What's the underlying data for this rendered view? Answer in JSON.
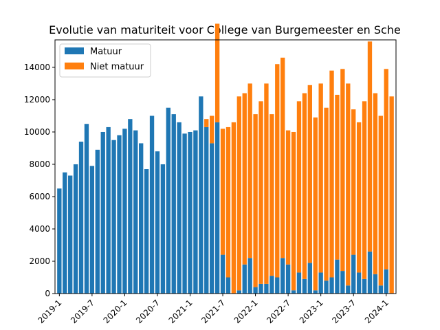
{
  "chart_data": {
    "type": "bar",
    "stacked": true,
    "title": "Evolutie van maturiteit voor College van Burgemeester en Sche",
    "xlabel": "",
    "ylabel": "",
    "ylim": [
      0,
      15700
    ],
    "yticks": [
      0,
      2000,
      4000,
      6000,
      8000,
      10000,
      12000,
      14000
    ],
    "xtick_labels": [
      "2019-1",
      "2019-7",
      "2020-1",
      "2020-7",
      "2021-1",
      "2021-7",
      "2022-1",
      "2022-7",
      "2023-1",
      "2023-7",
      "2024-1"
    ],
    "legend_position": "upper-left",
    "grid": false,
    "months": [
      "2019-1",
      "2019-2",
      "2019-3",
      "2019-4",
      "2019-5",
      "2019-6",
      "2019-7",
      "2019-8",
      "2019-9",
      "2019-10",
      "2019-11",
      "2019-12",
      "2020-1",
      "2020-2",
      "2020-3",
      "2020-4",
      "2020-5",
      "2020-6",
      "2020-7",
      "2020-8",
      "2020-9",
      "2020-10",
      "2020-11",
      "2020-12",
      "2021-1",
      "2021-2",
      "2021-3",
      "2021-4",
      "2021-5",
      "2021-6",
      "2021-7",
      "2021-8",
      "2021-9",
      "2021-10",
      "2021-11",
      "2021-12",
      "2022-1",
      "2022-2",
      "2022-3",
      "2022-4",
      "2022-5",
      "2022-6",
      "2022-7",
      "2022-8",
      "2022-9",
      "2022-10",
      "2022-11",
      "2022-12",
      "2023-1",
      "2023-2",
      "2023-3",
      "2023-4",
      "2023-5",
      "2023-6",
      "2023-7",
      "2023-8",
      "2023-9",
      "2023-10",
      "2023-11",
      "2023-12",
      "2024-1",
      "2024-2"
    ],
    "series": [
      {
        "name": "Matuur",
        "color": "#1f77b4",
        "values": [
          6500,
          7500,
          7300,
          8000,
          9400,
          10500,
          7900,
          8900,
          10000,
          10300,
          9500,
          9800,
          10200,
          10800,
          10100,
          9300,
          7700,
          11000,
          8800,
          8000,
          11500,
          11100,
          10600,
          9900,
          10000,
          10100,
          12200,
          10300,
          9300,
          10600,
          2400,
          1000,
          0,
          200,
          1800,
          2200,
          400,
          600,
          600,
          1100,
          1000,
          2200,
          1800,
          200,
          1300,
          900,
          1900,
          200,
          1300,
          800,
          1000,
          2100,
          1400,
          500,
          2400,
          1300,
          900,
          2600,
          1200,
          500,
          1500,
          0
        ]
      },
      {
        "name": "Niet matuur",
        "color": "#ff7f0e",
        "values": [
          0,
          0,
          0,
          0,
          0,
          0,
          0,
          0,
          0,
          0,
          0,
          0,
          0,
          0,
          0,
          0,
          0,
          0,
          0,
          0,
          0,
          0,
          0,
          0,
          0,
          0,
          0,
          500,
          1700,
          6100,
          7800,
          9300,
          10600,
          12000,
          10600,
          10800,
          10700,
          11300,
          12400,
          10000,
          13200,
          12400,
          8300,
          9800,
          10600,
          11500,
          11000,
          10700,
          11700,
          10700,
          12800,
          10200,
          12500,
          12500,
          9000,
          9300,
          11000,
          13000,
          11200,
          10500,
          12400,
          12200
        ]
      }
    ]
  }
}
